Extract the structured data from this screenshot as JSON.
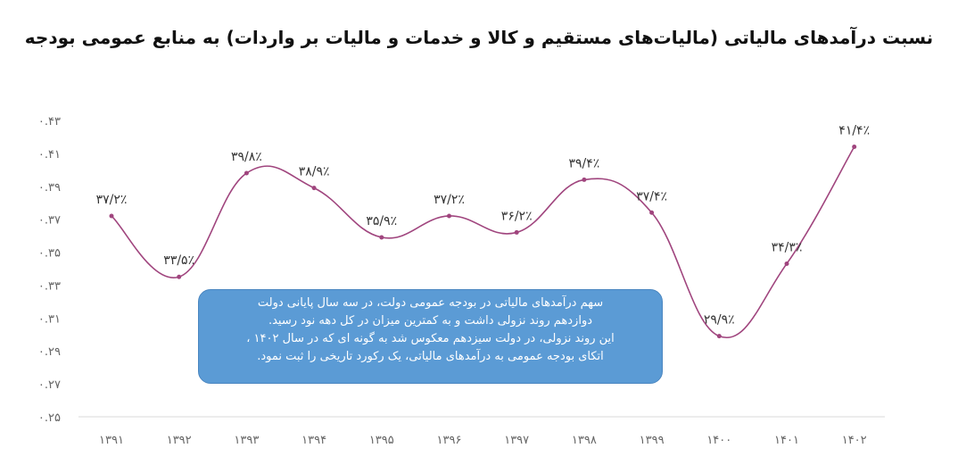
{
  "chart_data": {
    "type": "line",
    "title": "نسبت درآمدهای مالیاتی (مالیات‌های مستقیم و کالا و خدمات و مالیات بر واردات) به منابع عمومی بودجه",
    "xlabel": "",
    "ylabel": "",
    "categories": [
      "۱۳۹۱",
      "۱۳۹۲",
      "۱۳۹۳",
      "۱۳۹۴",
      "۱۳۹۵",
      "۱۳۹۶",
      "۱۳۹۷",
      "۱۳۹۸",
      "۱۳۹۹",
      "۱۴۰۰",
      "۱۴۰۱",
      "۱۴۰۲"
    ],
    "values": [
      0.372,
      0.335,
      0.398,
      0.389,
      0.359,
      0.372,
      0.362,
      0.394,
      0.374,
      0.299,
      0.343,
      0.414
    ],
    "data_labels": [
      "۳۷/۲٪",
      "۳۳/۵٪",
      "۳۹/۸٪",
      "۳۸/۹٪",
      "۳۵/۹٪",
      "۳۷/۲٪",
      "۳۶/۲٪",
      "۳۹/۴٪",
      "۳۷/۴٪",
      "۲۹/۹٪",
      "۳۴/۳٪",
      "۴۱/۴٪"
    ],
    "yticks": [
      "۰.۴۳",
      "۰.۴۱",
      "۰.۳۹",
      "۰.۳۷",
      "۰.۳۵",
      "۰.۳۳",
      "۰.۳۱",
      "۰.۲۹",
      "۰.۲۷",
      "۰.۲۵"
    ],
    "ylim": [
      0.25,
      0.43
    ],
    "grid": false,
    "legend": "none",
    "line_color": "#a0457e",
    "smooth": true
  },
  "annotation": {
    "lines": [
      "سهم درآمدهای مالیاتی در بودجه عمومی دولت، در سه سال پایانی دولت",
      "دوازدهم روند نزولی داشت و به کمترین میزان در کل دهه نود رسید.",
      "این روند نزولی، در دولت سیزدهم معکوس شد به گونه ای که در سال ۱۴۰۲ ،",
      "اتکای بودجه عمومی به درآمدهای مالیاتی، یک رکورد تاریخی را ثبت نمود."
    ],
    "fill_color": "#5b9bd5"
  }
}
